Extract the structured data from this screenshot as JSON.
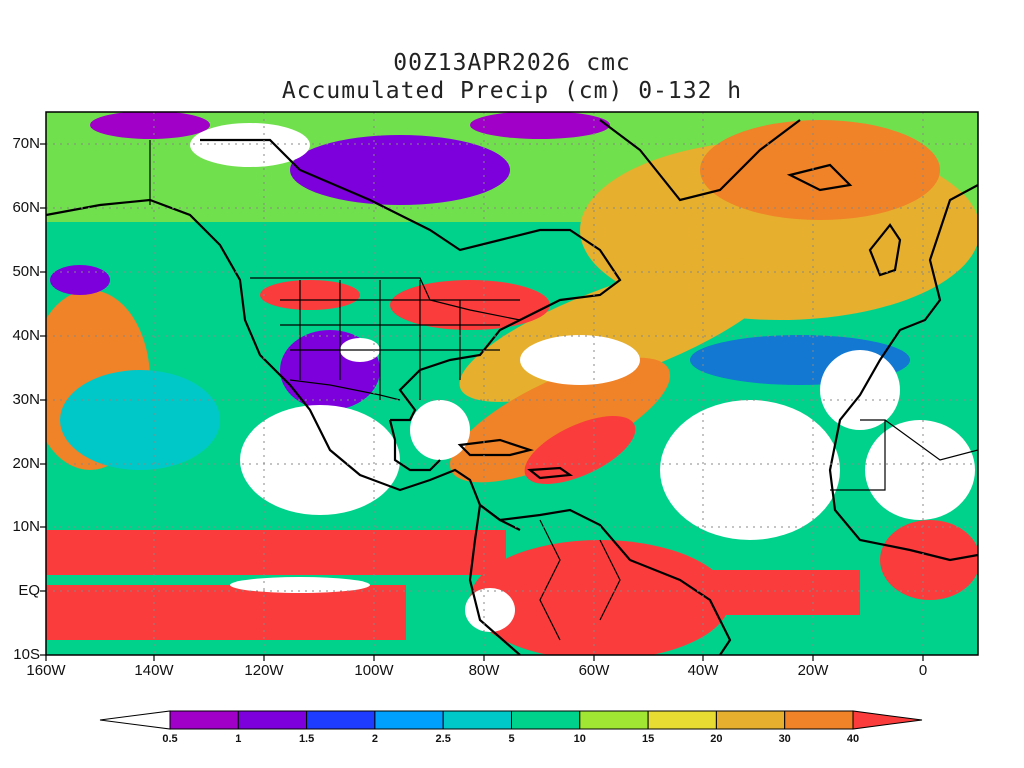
{
  "title_line1": "00Z13APR2026 cmc",
  "title_line2": "Accumulated Precip (cm) 0-132 h",
  "lat_labels": [
    "70N",
    "60N",
    "50N",
    "40N",
    "30N",
    "20N",
    "10N",
    "EQ",
    "10S"
  ],
  "lon_labels": [
    "160W",
    "140W",
    "120W",
    "100W",
    "80W",
    "60W",
    "40W",
    "20W",
    "0"
  ],
  "colorbar": {
    "levels": [
      "0.5",
      "1",
      "1.5",
      "2",
      "2.5",
      "5",
      "10",
      "15",
      "20",
      "30",
      "40"
    ],
    "colors": [
      "#ffffff",
      "#a000c8",
      "#7d00dc",
      "#1e3cff",
      "#00a0ff",
      "#00c8c8",
      "#00d28c",
      "#a0e632",
      "#e6dc32",
      "#e6af2d",
      "#f08228",
      "#fa3c3c"
    ]
  },
  "map": {
    "lat_range": [
      -10,
      75
    ],
    "lon_range": [
      -160,
      10
    ],
    "grid": "dotted"
  }
}
